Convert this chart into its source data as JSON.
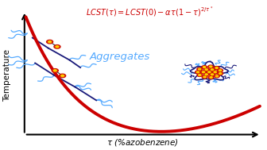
{
  "title_formula": "$\\mathit{LCST}(\\tau) = \\mathit{LCST}(0) - \\alpha\\tau(1-\\tau)^{2/\\tau^*}$",
  "xlabel": "$\\tau$ (%azobenzene)",
  "ylabel": "Temperature",
  "aggregates_label": "Aggregates",
  "curve_color": "#cc0000",
  "text_color": "#cc0000",
  "aggregates_color": "#55aaff",
  "axis_color": "#000000",
  "background_color": "#ffffff",
  "polymer_color_dark": "#1a1a7a",
  "polymer_color_light": "#55aaff",
  "azo_outer_color": "#cc1100",
  "azo_inner_color": "#ffcc00"
}
